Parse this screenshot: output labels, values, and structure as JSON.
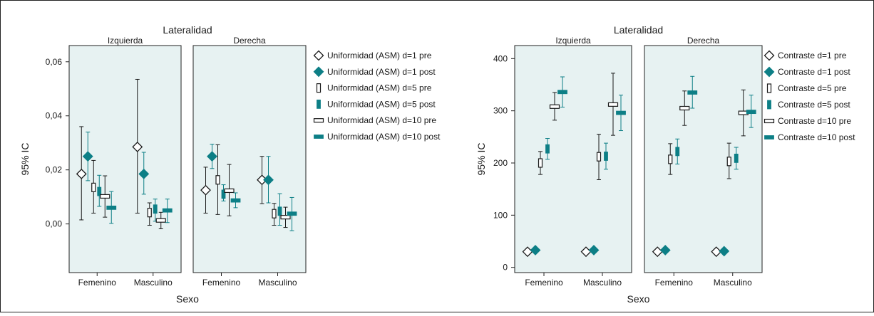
{
  "colors": {
    "pre": "#1a1a1a",
    "post": "#0d7f86",
    "panel_bg": "#e7f2f2",
    "frame": "#222222"
  },
  "chart_data": [
    {
      "type": "interval",
      "title": "Lateralidad",
      "panels": [
        "Izquierda",
        "Derecha"
      ],
      "categories": [
        "Femenino",
        "Masculino"
      ],
      "xlabel": "Sexo",
      "ylabel": "95% IC",
      "ylim": [
        -0.018,
        0.066
      ],
      "yticks": [
        0.0,
        0.02,
        0.04,
        0.06
      ],
      "ytick_labels": [
        "0,00",
        "0,02",
        "0,04",
        "0,06"
      ],
      "series": [
        {
          "name": "Uniformidad (ASM) d=1 pre",
          "marker": "diamond-open",
          "group": "pre",
          "data": [
            {
              "panel": 0,
              "cat": 0,
              "mean": 0.0185,
              "low": 0.0015,
              "high": 0.036
            },
            {
              "panel": 0,
              "cat": 1,
              "mean": 0.0285,
              "low": 0.004,
              "high": 0.0535
            },
            {
              "panel": 1,
              "cat": 0,
              "mean": 0.0125,
              "low": 0.004,
              "high": 0.021
            },
            {
              "panel": 1,
              "cat": 1,
              "mean": 0.0163,
              "low": 0.0075,
              "high": 0.025
            }
          ]
        },
        {
          "name": "Uniformidad (ASM) d=1 post",
          "marker": "diamond-filled",
          "group": "post",
          "data": [
            {
              "panel": 0,
              "cat": 0,
              "mean": 0.025,
              "low": 0.016,
              "high": 0.034
            },
            {
              "panel": 0,
              "cat": 1,
              "mean": 0.0185,
              "low": 0.011,
              "high": 0.0265
            },
            {
              "panel": 1,
              "cat": 0,
              "mean": 0.025,
              "low": 0.0205,
              "high": 0.0295
            },
            {
              "panel": 1,
              "cat": 1,
              "mean": 0.0163,
              "low": 0.0078,
              "high": 0.025
            }
          ]
        },
        {
          "name": "Uniformidad (ASM) d=5 pre",
          "marker": "bar-vertical-open",
          "group": "pre",
          "data": [
            {
              "panel": 0,
              "cat": 0,
              "mean": 0.0135,
              "low": 0.004,
              "high": 0.0235
            },
            {
              "panel": 0,
              "cat": 1,
              "mean": 0.0042,
              "low": -0.0005,
              "high": 0.0078
            },
            {
              "panel": 1,
              "cat": 0,
              "mean": 0.0163,
              "low": 0.0035,
              "high": 0.0293
            },
            {
              "panel": 1,
              "cat": 1,
              "mean": 0.0038,
              "low": -0.0005,
              "high": 0.0076
            }
          ]
        },
        {
          "name": "Uniformidad (ASM) d=5 post",
          "marker": "bar-vertical-filled",
          "group": "post",
          "data": [
            {
              "panel": 0,
              "cat": 0,
              "mean": 0.012,
              "low": 0.0065,
              "high": 0.018
            },
            {
              "panel": 0,
              "cat": 1,
              "mean": 0.0055,
              "low": 0.001,
              "high": 0.0092
            },
            {
              "panel": 1,
              "cat": 0,
              "mean": 0.011,
              "low": 0.0085,
              "high": 0.0145
            },
            {
              "panel": 1,
              "cat": 1,
              "mean": 0.0047,
              "low": -0.0005,
              "high": 0.0112
            }
          ]
        },
        {
          "name": "Uniformidad (ASM) d=10 pre",
          "marker": "bar-horizontal-open",
          "group": "pre",
          "data": [
            {
              "panel": 0,
              "cat": 0,
              "mean": 0.0102,
              "low": 0.0025,
              "high": 0.0178
            },
            {
              "panel": 0,
              "cat": 1,
              "mean": 0.0013,
              "low": -0.0018,
              "high": 0.0043
            },
            {
              "panel": 1,
              "cat": 0,
              "mean": 0.0123,
              "low": 0.003,
              "high": 0.022
            },
            {
              "panel": 1,
              "cat": 1,
              "mean": 0.0025,
              "low": -0.0013,
              "high": 0.0062
            }
          ]
        },
        {
          "name": "Uniformidad (ASM) d=10 post",
          "marker": "bar-horizontal-filled",
          "group": "post",
          "data": [
            {
              "panel": 0,
              "cat": 0,
              "mean": 0.006,
              "low": 0.0002,
              "high": 0.012
            },
            {
              "panel": 0,
              "cat": 1,
              "mean": 0.005,
              "low": 0.0005,
              "high": 0.0092
            },
            {
              "panel": 1,
              "cat": 0,
              "mean": 0.0087,
              "low": 0.006,
              "high": 0.0115
            },
            {
              "panel": 1,
              "cat": 1,
              "mean": 0.0038,
              "low": -0.0025,
              "high": 0.0098
            }
          ]
        }
      ]
    },
    {
      "type": "interval",
      "title": "Lateralidad",
      "panels": [
        "Izquierda",
        "Derecha"
      ],
      "categories": [
        "Femenino",
        "Masculino"
      ],
      "xlabel": "Sexo",
      "ylabel": "95% IC",
      "ylim": [
        -10,
        425
      ],
      "yticks": [
        0,
        100,
        200,
        300,
        400
      ],
      "ytick_labels": [
        "0",
        "100",
        "200",
        "300",
        "400"
      ],
      "series": [
        {
          "name": "Contraste d=1 pre",
          "marker": "diamond-open",
          "group": "pre",
          "data": [
            {
              "panel": 0,
              "cat": 0,
              "mean": 30,
              "low": 27,
              "high": 33
            },
            {
              "panel": 0,
              "cat": 1,
              "mean": 30,
              "low": 27,
              "high": 33
            },
            {
              "panel": 1,
              "cat": 0,
              "mean": 30,
              "low": 27,
              "high": 33
            },
            {
              "panel": 1,
              "cat": 1,
              "mean": 30,
              "low": 27,
              "high": 33
            }
          ]
        },
        {
          "name": "Contraste d=1 post",
          "marker": "diamond-filled",
          "group": "post",
          "data": [
            {
              "panel": 0,
              "cat": 0,
              "mean": 33,
              "low": 30,
              "high": 36
            },
            {
              "panel": 0,
              "cat": 1,
              "mean": 33,
              "low": 30,
              "high": 36
            },
            {
              "panel": 1,
              "cat": 0,
              "mean": 33,
              "low": 30,
              "high": 36
            },
            {
              "panel": 1,
              "cat": 1,
              "mean": 31,
              "low": 28,
              "high": 34
            }
          ]
        },
        {
          "name": "Contraste d=5 pre",
          "marker": "bar-vertical-open",
          "group": "pre",
          "data": [
            {
              "panel": 0,
              "cat": 0,
              "mean": 200,
              "low": 178,
              "high": 222
            },
            {
              "panel": 0,
              "cat": 1,
              "mean": 212,
              "low": 168,
              "high": 255
            },
            {
              "panel": 1,
              "cat": 0,
              "mean": 207,
              "low": 178,
              "high": 237
            },
            {
              "panel": 1,
              "cat": 1,
              "mean": 203,
              "low": 170,
              "high": 238
            }
          ]
        },
        {
          "name": "Contraste d=5 post",
          "marker": "bar-vertical-filled",
          "group": "post",
          "data": [
            {
              "panel": 0,
              "cat": 0,
              "mean": 227,
              "low": 207,
              "high": 247
            },
            {
              "panel": 0,
              "cat": 1,
              "mean": 213,
              "low": 188,
              "high": 238
            },
            {
              "panel": 1,
              "cat": 0,
              "mean": 222,
              "low": 198,
              "high": 246
            },
            {
              "panel": 1,
              "cat": 1,
              "mean": 209,
              "low": 188,
              "high": 230
            }
          ]
        },
        {
          "name": "Contraste d=10 pre",
          "marker": "bar-horizontal-open",
          "group": "pre",
          "data": [
            {
              "panel": 0,
              "cat": 0,
              "mean": 308,
              "low": 282,
              "high": 335
            },
            {
              "panel": 0,
              "cat": 1,
              "mean": 312,
              "low": 253,
              "high": 372
            },
            {
              "panel": 1,
              "cat": 0,
              "mean": 305,
              "low": 272,
              "high": 338
            },
            {
              "panel": 1,
              "cat": 1,
              "mean": 296,
              "low": 252,
              "high": 340
            }
          ]
        },
        {
          "name": "Contraste d=10 post",
          "marker": "bar-horizontal-filled",
          "group": "post",
          "data": [
            {
              "panel": 0,
              "cat": 0,
              "mean": 336,
              "low": 307,
              "high": 365
            },
            {
              "panel": 0,
              "cat": 1,
              "mean": 296,
              "low": 262,
              "high": 330
            },
            {
              "panel": 1,
              "cat": 0,
              "mean": 335,
              "low": 305,
              "high": 366
            },
            {
              "panel": 1,
              "cat": 1,
              "mean": 298,
              "low": 268,
              "high": 330
            }
          ]
        }
      ]
    }
  ]
}
